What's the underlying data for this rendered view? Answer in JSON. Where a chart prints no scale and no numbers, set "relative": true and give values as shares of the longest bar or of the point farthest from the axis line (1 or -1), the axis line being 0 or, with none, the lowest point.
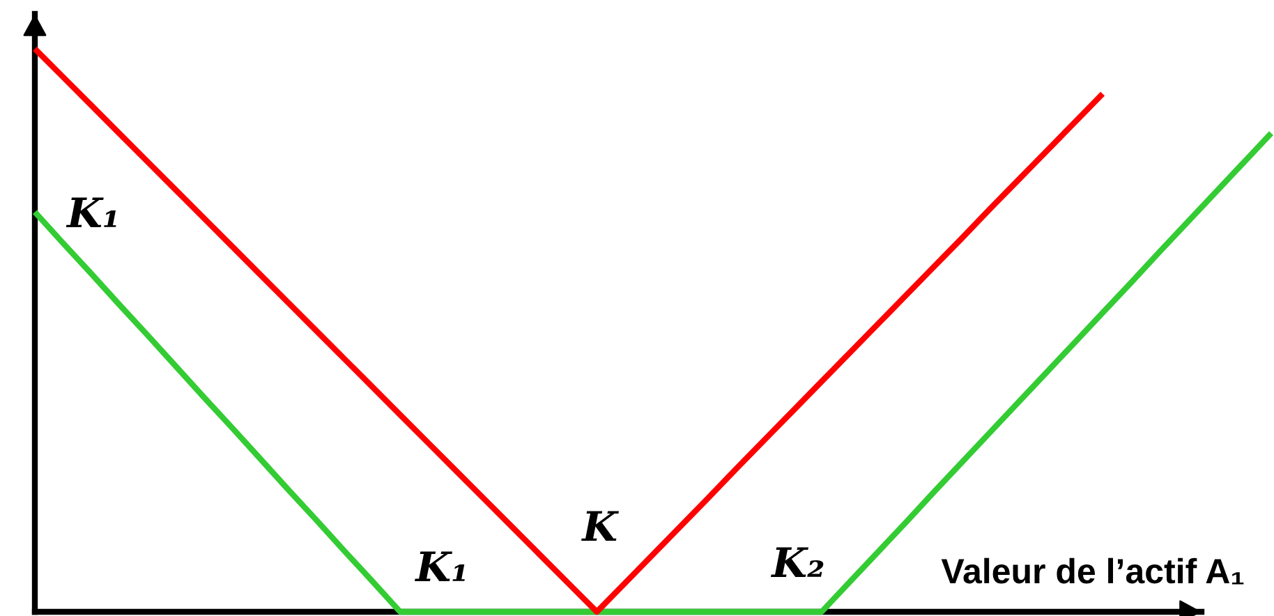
{
  "chart_data": {
    "type": "line",
    "relative": true,
    "xlabel": "Valeur de l’actif A₁",
    "line_style": "solid",
    "tick_labels": false,
    "categories": [
      null,
      null,
      null,
      null,
      null,
      null,
      null,
      null,
      null,
      null,
      null,
      null,
      null,
      null,
      null,
      null,
      null,
      null,
      null,
      null,
      null,
      null,
      null,
      null,
      null,
      null,
      null,
      null,
      null,
      null,
      null,
      null,
      null,
      null,
      null,
      null,
      null,
      null,
      null,
      null,
      null,
      null,
      null,
      null,
      null
    ],
    "series": [
      {
        "color": "#ff0000",
        "values": [
          1,
          0.95,
          0.9,
          0.85,
          0.8,
          0.75,
          0.7,
          0.65,
          0.6,
          0.55,
          0.5,
          0.45,
          0.4,
          0.35,
          0.3,
          0.25,
          0.2,
          0.15,
          0.1,
          0.05,
          0,
          0.051,
          0.102,
          0.153,
          0.204,
          0.256,
          0.307,
          0.358,
          0.409,
          0.46,
          0.511,
          0.562,
          0.613,
          0.664,
          0.716,
          0.767,
          0.818,
          0.869,
          0.92,
          null,
          null,
          null,
          null,
          null,
          null
        ]
      },
      {
        "color": "#33cc33",
        "values": [
          0.71,
          0.655,
          0.601,
          0.546,
          0.492,
          0.437,
          0.382,
          0.328,
          0.273,
          0.218,
          0.164,
          0.109,
          0.055,
          0,
          0,
          0,
          0,
          0,
          0,
          0,
          0,
          0,
          0,
          0,
          0,
          0,
          0,
          0,
          0,
          0.053,
          0.106,
          0.159,
          0.213,
          0.266,
          0.319,
          0.372,
          0.425,
          0.478,
          0.531,
          0.584,
          0.638,
          0.691,
          0.744,
          0.797,
          0.85
        ]
      }
    ],
    "annotations": [
      "K₁",
      "K₁",
      "K",
      "K₂"
    ]
  }
}
